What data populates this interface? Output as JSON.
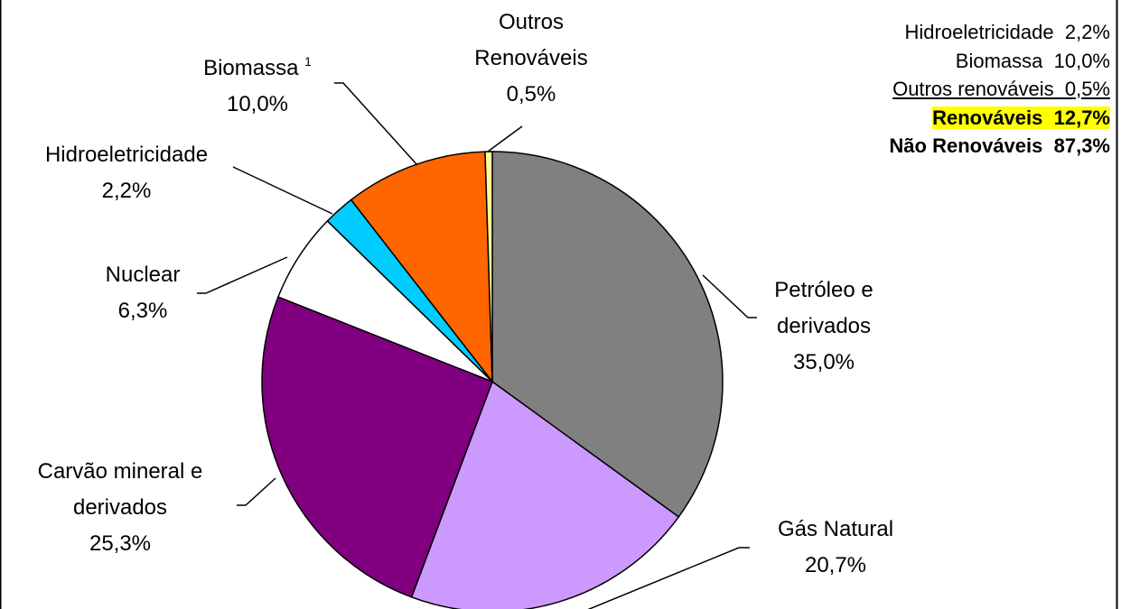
{
  "chart_data": {
    "type": "pie",
    "categories": [
      "Petróleo e derivados",
      "Gás Natural",
      "Carvão mineral e derivados",
      "Nuclear",
      "Hidroeletricidade",
      "Biomassa",
      "Outros Renováveis"
    ],
    "values": [
      35.0,
      20.7,
      25.3,
      6.3,
      2.2,
      10.0,
      0.5
    ],
    "value_labels": [
      "35,0%",
      "20,7%",
      "25,3%",
      "6,3%",
      "2,2%",
      "10,0%",
      "0,5%"
    ],
    "footnote_marks": [
      null,
      null,
      null,
      null,
      null,
      "1",
      null
    ],
    "colors": [
      "#808080",
      "#cc99ff",
      "#800080",
      "#ffffff",
      "#00ccff",
      "#ff6600",
      "#ffff99"
    ],
    "summary": [
      {
        "label": "Hidroeletricidade",
        "value": "2,2%"
      },
      {
        "label": "Biomassa",
        "value": "10,0%"
      },
      {
        "label": "Outros renováveis",
        "value": "0,5%"
      },
      {
        "label": "Renováveis",
        "value": "12,7%"
      },
      {
        "label": "Não Renováveis",
        "value": "87,3%"
      }
    ]
  }
}
